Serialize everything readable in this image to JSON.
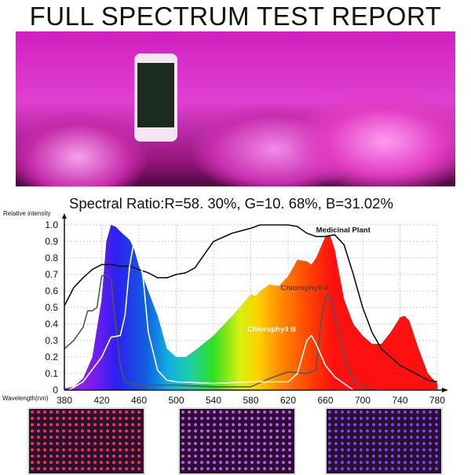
{
  "title": "FULL SPECTRUM TEST REPORT",
  "spectral_ratio": "Spectral Ratio:R=58. 30%, G=10. 68%, B=31.02%",
  "chart_data": {
    "type": "line",
    "title": "",
    "xlabel": "Wavelength(nm)",
    "ylabel": "Relative intensity",
    "xlim": [
      380,
      780
    ],
    "ylim": [
      0,
      1.0
    ],
    "xticks": [
      "380",
      "420",
      "460",
      "500",
      "540",
      "580",
      "620",
      "660",
      "700",
      "740",
      "780"
    ],
    "yticks": [
      "0",
      "0.1",
      "0.2",
      "0.3",
      "0.4",
      "0.5",
      "0.6",
      "0.7",
      "0.8",
      "0.9",
      "1.0"
    ],
    "grid": true,
    "series": [
      {
        "name": "",
        "style": "filled-rainbow",
        "x": [
          380,
          390,
          400,
          410,
          420,
          425,
          430,
          435,
          440,
          450,
          455,
          460,
          470,
          480,
          490,
          500,
          510,
          520,
          540,
          560,
          580,
          585,
          590,
          600,
          610,
          620,
          630,
          640,
          645,
          650,
          660,
          665,
          670,
          680,
          690,
          700,
          710,
          720,
          730,
          740,
          745,
          750,
          760,
          770,
          780
        ],
        "y": [
          0.01,
          0.02,
          0.07,
          0.2,
          0.55,
          0.9,
          1.0,
          0.99,
          0.96,
          0.91,
          0.85,
          0.75,
          0.6,
          0.45,
          0.25,
          0.2,
          0.2,
          0.24,
          0.33,
          0.45,
          0.58,
          0.57,
          0.6,
          0.64,
          0.63,
          0.69,
          0.79,
          0.78,
          0.76,
          0.8,
          0.93,
          0.94,
          0.85,
          0.55,
          0.4,
          0.33,
          0.28,
          0.28,
          0.35,
          0.44,
          0.45,
          0.42,
          0.25,
          0.1,
          0.04
        ]
      },
      {
        "name": "Medicinal Plant",
        "color": "#111111",
        "x": [
          380,
          390,
          400,
          410,
          420,
          430,
          440,
          450,
          460,
          470,
          480,
          490,
          500,
          510,
          520,
          530,
          540,
          560,
          580,
          590,
          620,
          630,
          640,
          650,
          660,
          670,
          680,
          690,
          700,
          710,
          720,
          740,
          760,
          770,
          780
        ],
        "y": [
          0.51,
          0.62,
          0.68,
          0.73,
          0.76,
          0.76,
          0.75,
          0.75,
          0.73,
          0.71,
          0.68,
          0.68,
          0.7,
          0.71,
          0.74,
          0.82,
          0.9,
          0.95,
          0.98,
          1.0,
          1.0,
          0.99,
          0.95,
          0.93,
          0.93,
          0.94,
          0.88,
          0.7,
          0.5,
          0.35,
          0.25,
          0.15,
          0.09,
          0.06,
          0.05
        ]
      },
      {
        "name": "Chlorophyll A",
        "color": "#555555",
        "x": [
          380,
          390,
          400,
          405,
          410,
          415,
          420,
          425,
          430,
          435,
          440,
          445,
          460,
          500,
          540,
          580,
          600,
          620,
          640,
          650,
          655,
          660,
          665,
          670,
          680,
          690,
          700,
          710
        ],
        "y": [
          0.25,
          0.3,
          0.38,
          0.48,
          0.48,
          0.5,
          0.69,
          0.7,
          0.67,
          0.4,
          0.15,
          0.05,
          0.03,
          0.03,
          0.02,
          0.02,
          0.07,
          0.11,
          0.1,
          0.12,
          0.4,
          0.57,
          0.57,
          0.45,
          0.2,
          0.06,
          0.02,
          0.0
        ]
      },
      {
        "name": "Chlorophyll B",
        "color": "#ffffff",
        "x": [
          385,
          400,
          420,
          430,
          440,
          445,
          450,
          455,
          460,
          465,
          470,
          480,
          490,
          500,
          540,
          580,
          600,
          620,
          630,
          640,
          645,
          650,
          660,
          670,
          690
        ],
        "y": [
          0.0,
          0.05,
          0.2,
          0.32,
          0.33,
          0.45,
          0.75,
          0.91,
          0.85,
          0.65,
          0.35,
          0.12,
          0.06,
          0.05,
          0.04,
          0.05,
          0.05,
          0.05,
          0.1,
          0.3,
          0.33,
          0.28,
          0.15,
          0.08,
          0.0
        ]
      }
    ]
  },
  "colors": {
    "photo_accent": "#d020c0",
    "spectrum_red": "#ff1010",
    "spectrum_blue": "#1030ff"
  }
}
